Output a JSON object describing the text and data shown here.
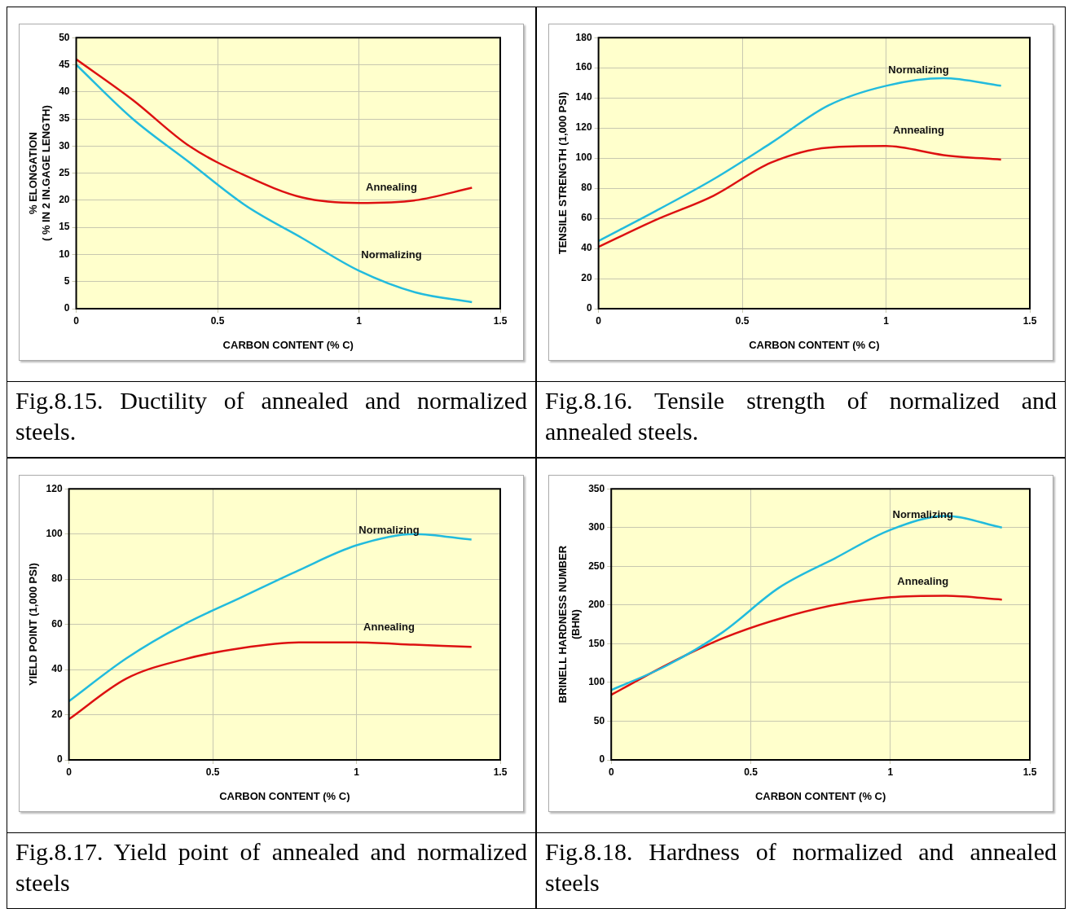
{
  "chart_data": [
    {
      "type": "line",
      "xlabel": "CARBON CONTENT (% C)",
      "ylabel": "% ELONGATION\n( % IN 2 IN.GAGE LENGTH)",
      "x": [
        0,
        0.2,
        0.4,
        0.6,
        0.8,
        1,
        1.2,
        1.4
      ],
      "xlim": [
        0,
        1.5
      ],
      "xticks": [
        0,
        0.5,
        1,
        1.5
      ],
      "ylim": [
        0,
        50
      ],
      "yticks": [
        0,
        5,
        10,
        15,
        20,
        25,
        30,
        35,
        40,
        45,
        50
      ],
      "grid": true,
      "legend": false,
      "marker": "none",
      "line_style": "solid",
      "annotations": [
        "Fig.8.15. Ductility of annealed and normalized steels."
      ],
      "series": [
        {
          "name": "Annealing",
          "color": "#dd1111",
          "values": [
            46,
            38.5,
            30,
            24.5,
            20.5,
            19.5,
            20,
            22.3
          ]
        },
        {
          "name": "Normalizing",
          "color": "#22bbdd",
          "values": [
            45,
            35,
            27,
            19,
            13,
            7,
            3,
            1.2
          ]
        }
      ]
    },
    {
      "type": "line",
      "xlabel": "CARBON CONTENT (% C)",
      "ylabel": "TENSILE STRENGTH (1,000 PSI)",
      "x": [
        0,
        0.2,
        0.4,
        0.6,
        0.8,
        1,
        1.2,
        1.4
      ],
      "xlim": [
        0,
        1.5
      ],
      "xticks": [
        0,
        0.5,
        1,
        1.5
      ],
      "ylim": [
        0,
        180
      ],
      "yticks": [
        0,
        20,
        40,
        60,
        80,
        100,
        120,
        140,
        160,
        180
      ],
      "grid": true,
      "legend": false,
      "marker": "none",
      "line_style": "solid",
      "annotations": [
        "Fig.8.16. Tensile strength of normalized and annealed steels."
      ],
      "series": [
        {
          "name": "Normalizing",
          "color": "#22bbdd",
          "values": [
            45,
            65,
            86,
            110,
            135,
            148,
            153,
            148
          ]
        },
        {
          "name": "Annealing",
          "color": "#dd1111",
          "values": [
            41,
            59,
            75,
            97,
            107,
            108,
            102,
            99
          ]
        }
      ]
    },
    {
      "type": "line",
      "xlabel": "CARBON CONTENT (% C)",
      "ylabel": "YIELD POINT (1,000 PSI)",
      "x": [
        0,
        0.2,
        0.4,
        0.6,
        0.8,
        1,
        1.2,
        1.4
      ],
      "xlim": [
        0,
        1.5
      ],
      "xticks": [
        0,
        0.5,
        1,
        1.5
      ],
      "ylim": [
        0,
        120
      ],
      "yticks": [
        0,
        20,
        40,
        60,
        80,
        100,
        120
      ],
      "grid": true,
      "legend": false,
      "marker": "none",
      "line_style": "solid",
      "annotations": [
        "Fig.8.17. Yield point of annealed and normalized steels"
      ],
      "series": [
        {
          "name": "Normalizing",
          "color": "#22bbdd",
          "values": [
            26,
            45,
            60,
            72,
            84,
            95,
            100,
            97.5
          ]
        },
        {
          "name": "Annealing",
          "color": "#dd1111",
          "values": [
            18,
            36,
            44.5,
            49.5,
            52,
            52,
            51,
            50
          ]
        }
      ]
    },
    {
      "type": "line",
      "xlabel": "CARBON CONTENT (% C)",
      "ylabel": "BRINELL HARDNESS NUMBER\n(BHN)",
      "x": [
        0,
        0.2,
        0.4,
        0.6,
        0.8,
        1,
        1.2,
        1.4
      ],
      "xlim": [
        0,
        1.5
      ],
      "xticks": [
        0,
        0.5,
        1,
        1.5
      ],
      "ylim": [
        0,
        350
      ],
      "yticks": [
        0,
        50,
        100,
        150,
        200,
        250,
        300,
        350
      ],
      "grid": true,
      "legend": false,
      "marker": "none",
      "line_style": "solid",
      "annotations": [
        "Fig.8.18. Hardness of normalized and annealed steels"
      ],
      "series": [
        {
          "name": "Normalizing",
          "color": "#22bbdd",
          "values": [
            90,
            122,
            165,
            222,
            260,
            297,
            315,
            300
          ]
        },
        {
          "name": "Annealing",
          "color": "#dd1111",
          "values": [
            84,
            123,
            157,
            182,
            200,
            210,
            212,
            207
          ]
        }
      ]
    }
  ]
}
